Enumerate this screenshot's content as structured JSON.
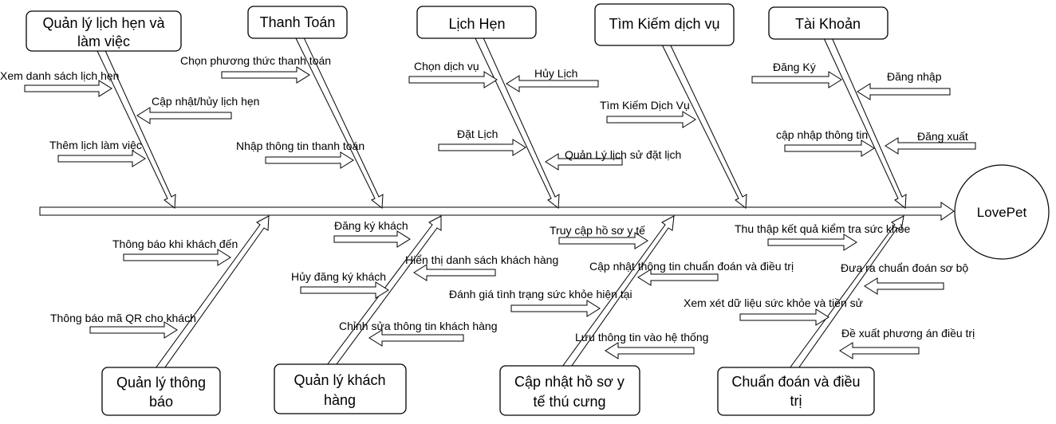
{
  "head": "LovePet",
  "categories": [
    {
      "id": "appointments-work",
      "lines": [
        "Quản lý lịch hẹn và",
        "làm việc"
      ],
      "causes": [
        "Xem danh sách lịch hẹn",
        "Cập nhật/hủy lịch hẹn",
        "Thêm lịch làm việc"
      ]
    },
    {
      "id": "payment",
      "lines": [
        "Thanh Toán"
      ],
      "causes": [
        "Chọn phương thức thanh toán",
        "Nhập thông tin thanh toán"
      ]
    },
    {
      "id": "booking",
      "lines": [
        "Lịch Hẹn"
      ],
      "causes": [
        "Chọn dịch vụ",
        "Hủy Lịch",
        "Đặt Lịch",
        "Quản Lý lịch sử đặt lịch"
      ]
    },
    {
      "id": "service-search",
      "lines": [
        "Tìm Kiếm dịch vụ"
      ],
      "causes": [
        "Tìm Kiếm Dịch Vụ"
      ]
    },
    {
      "id": "account",
      "lines": [
        "Tài Khoản"
      ],
      "causes": [
        "Đăng Ký",
        "Đăng nhập",
        "cập nhập thông tin",
        "Đăng xuất"
      ]
    },
    {
      "id": "notifications",
      "lines": [
        "Quản lý thông",
        "báo"
      ],
      "causes": [
        "Thông báo khi khách đến",
        "Thông báo mã QR cho khách"
      ]
    },
    {
      "id": "customers",
      "lines": [
        "Quản lý khách",
        "hàng"
      ],
      "causes": [
        "Đăng ký khách",
        "Hiển thị danh sách khách hàng",
        "Hủy đăng ký khách",
        "Chỉnh sửa thông tin khách hàng"
      ]
    },
    {
      "id": "medical-records",
      "lines": [
        "Cập nhật hồ sơ y",
        "tế thú cưng"
      ],
      "causes": [
        "Truy cập hồ sơ y tế",
        "Cập nhật thông tin chuẩn đoán và điều trị",
        "Đánh giá tình trạng sức khỏe hiện tại",
        "Lưu thông tin vào hệ thống"
      ]
    },
    {
      "id": "diagnosis",
      "lines": [
        "Chuẩn đoán và điều",
        "trị"
      ],
      "causes": [
        "Thu thập kết quả kiểm tra sức khỏe",
        "Đưa ra chuẩn đoán sơ bộ",
        "Xem xét dữ liệu sức khỏe và tiền sử",
        "Đề xuất phương án điều trị"
      ]
    }
  ]
}
